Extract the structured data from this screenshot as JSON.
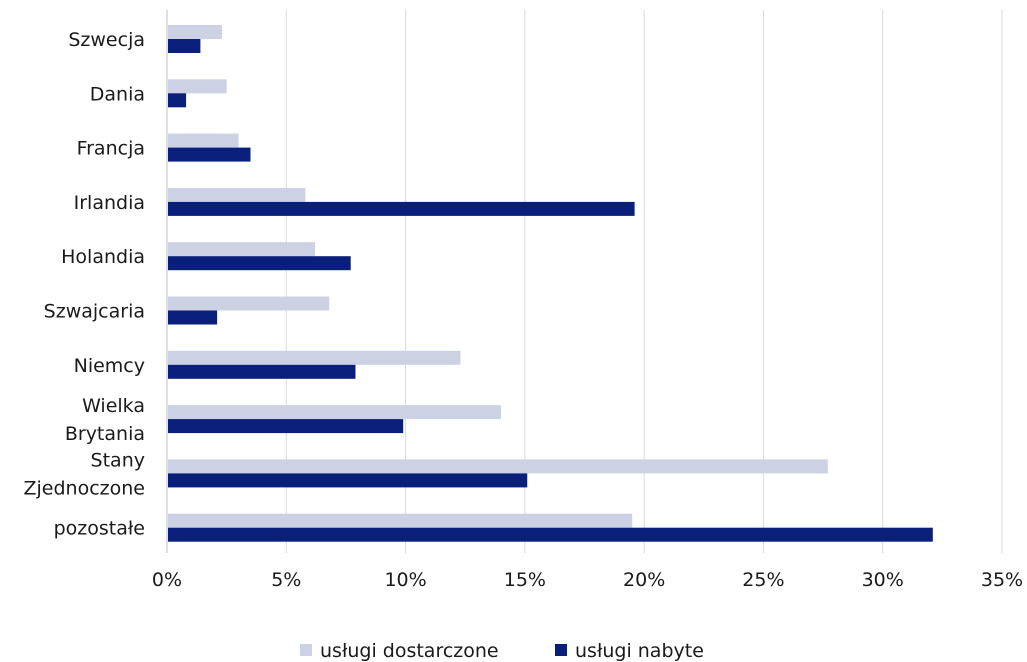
{
  "chart_data": {
    "type": "bar",
    "orientation": "horizontal",
    "categories": [
      [
        "Szwecja"
      ],
      [
        "Dania"
      ],
      [
        "Francja"
      ],
      [
        "Irlandia"
      ],
      [
        "Holandia"
      ],
      [
        "Szwajcaria"
      ],
      [
        "Niemcy"
      ],
      [
        "Wielka",
        "Brytania"
      ],
      [
        "Stany",
        "Zjednoczone"
      ],
      [
        "pozostałe"
      ]
    ],
    "series": [
      {
        "name": "usługi dostarczone",
        "color": "#cdd1e4",
        "values": [
          2.3,
          2.5,
          3.0,
          5.8,
          6.2,
          6.8,
          12.3,
          14.0,
          27.7,
          19.5
        ]
      },
      {
        "name": "usługi nabyte",
        "color": "#0a1f7a",
        "values": [
          1.4,
          0.8,
          3.5,
          19.6,
          7.7,
          2.1,
          7.9,
          9.9,
          15.1,
          32.1
        ]
      }
    ],
    "xlim": [
      0,
      35
    ],
    "xticks": [
      0,
      5,
      10,
      15,
      20,
      25,
      30,
      35
    ],
    "xtick_labels": [
      "0%",
      "5%",
      "10%",
      "15%",
      "20%",
      "25%",
      "30%",
      "35%"
    ],
    "grid": "vertical",
    "legend_position": "bottom"
  }
}
